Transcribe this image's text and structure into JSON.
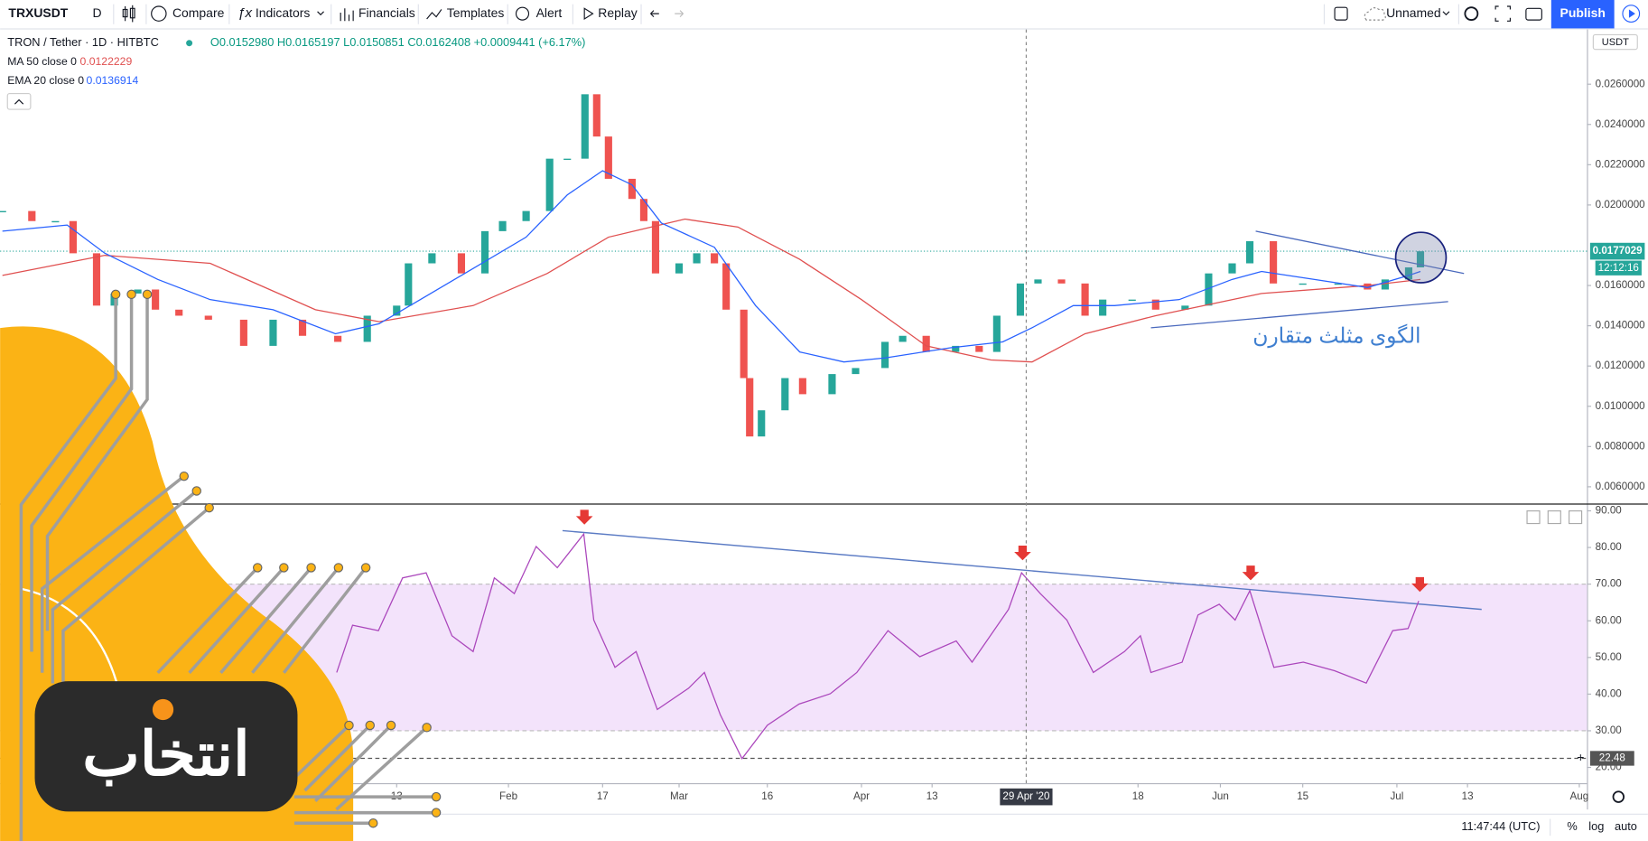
{
  "toolbar": {
    "symbol": "TRXUSDT",
    "interval": "D",
    "compare": "Compare",
    "indicators": "Indicators",
    "financials": "Financials",
    "templates": "Templates",
    "alert": "Alert",
    "replay": "Replay",
    "layout": "Unnamed",
    "publish": "Publish"
  },
  "status": {
    "time": "11:47:44 (UTC)",
    "percent": "%",
    "log": "log",
    "auto": "auto"
  },
  "logo": {
    "text": "انتخاب"
  },
  "chart_data": [
    {
      "type": "candlestick",
      "title": "TRON / Tether · 1D · HITBTC",
      "ohlc": "O0.0152980 H0.0165197 L0.0150851 C0.0162408 +0.0009441 (+6.17%)",
      "unit": "USDT",
      "xlim": [
        -55.4,
        214.3
      ],
      "ylim": [
        0.02872,
        0.00522
      ],
      "yticks": [
        {
          "value": 0.026,
          "label": "0.0260000"
        },
        {
          "value": 0.024,
          "label": "0.0240000"
        },
        {
          "value": 0.022,
          "label": "0.0220000"
        },
        {
          "value": 0.02,
          "label": "0.0200000"
        },
        {
          "value": 0.016,
          "label": "0.0160000"
        },
        {
          "value": 0.014,
          "label": "0.0140000"
        },
        {
          "value": 0.012,
          "label": "0.0120000"
        },
        {
          "value": 0.01,
          "label": "0.0100000"
        },
        {
          "value": 0.008,
          "label": "0.0080000"
        },
        {
          "value": 0.006,
          "label": "0.0060000"
        }
      ],
      "xticks": [
        {
          "value": 12,
          "label": "13"
        },
        {
          "value": 31,
          "label": "Feb"
        },
        {
          "value": 47,
          "label": "17"
        },
        {
          "value": 60,
          "label": "Mar"
        },
        {
          "value": 75,
          "label": "16"
        },
        {
          "value": 91,
          "label": "Apr"
        },
        {
          "value": 103,
          "label": "13"
        },
        {
          "value": 138,
          "label": "18"
        },
        {
          "value": 152,
          "label": "Jun"
        },
        {
          "value": 166,
          "label": "15"
        },
        {
          "value": 182,
          "label": "Jul"
        },
        {
          "value": 194,
          "label": "13"
        },
        {
          "value": 213,
          "label": "Aug"
        }
      ],
      "cursor": {
        "value": 119,
        "label": "29 Apr '20"
      },
      "series": [
        {
          "up_color": "#26a69a",
          "down_color": "#ef5350",
          "x": [
            -55,
            -50,
            -46,
            -43,
            -39,
            -36,
            -32,
            -29,
            -25,
            -20,
            -14,
            -9,
            -4,
            2,
            7,
            12,
            14,
            18,
            23,
            27,
            30,
            34,
            38,
            41,
            44,
            46,
            48,
            52,
            54,
            56,
            60,
            63,
            66,
            68,
            71,
            72,
            74,
            78,
            81,
            86,
            90,
            95,
            98,
            102,
            107,
            111,
            114,
            118,
            121,
            125,
            129,
            132,
            137,
            141,
            146,
            150,
            154,
            157,
            161,
            166,
            172,
            177,
            180,
            184,
            186
          ],
          "values": [
            0.0197,
            0.0192,
            0.0192,
            0.0176,
            0.015,
            0.0156,
            0.0158,
            0.0148,
            0.0145,
            0.0143,
            0.013,
            0.0143,
            0.0135,
            0.0132,
            0.0145,
            0.015,
            0.0171,
            0.0176,
            0.0166,
            0.0187,
            0.0192,
            0.0197,
            0.0223,
            0.0223,
            0.0255,
            0.0234,
            0.0213,
            0.0203,
            0.0192,
            0.0166,
            0.0171,
            0.0176,
            0.0171,
            0.0148,
            0.0114,
            0.0085,
            0.0098,
            0.0114,
            0.0106,
            0.0116,
            0.0119,
            0.0132,
            0.0135,
            0.0127,
            0.013,
            0.0127,
            0.0145,
            0.0161,
            0.0163,
            0.0161,
            0.0145,
            0.0153,
            0.0153,
            0.0148,
            0.015,
            0.0166,
            0.0171,
            0.0182,
            0.0161,
            0.0161,
            0.0161,
            0.0158,
            0.0163,
            0.0169,
            0.0177
          ]
        }
      ],
      "indicators": [
        {
          "name": "MA 50 close 0",
          "value": 0.0122229,
          "color": "#e05050",
          "x": [
            -55,
            -37.6,
            -19.7,
            -1.8,
            9,
            25,
            37.6,
            48,
            61,
            70,
            80.5,
            91,
            102,
            113,
            120,
            129,
            141,
            159,
            177,
            186
          ],
          "values": [
            0.0165,
            0.0175,
            0.0171,
            0.0148,
            0.0142,
            0.015,
            0.0166,
            0.0184,
            0.0193,
            0.0189,
            0.0173,
            0.0153,
            0.013,
            0.0123,
            0.0122,
            0.0136,
            0.0145,
            0.0156,
            0.016,
            0.0163
          ]
        },
        {
          "name": "EMA 20 close 0",
          "value": 0.0136914,
          "color": "#2962ff",
          "x": [
            -55,
            -44,
            -37.6,
            -28.6,
            -19.7,
            -9,
            1.6,
            9,
            16,
            23,
            34,
            41,
            47,
            52,
            57,
            66,
            73,
            80.5,
            88,
            95,
            106,
            115,
            120,
            127,
            134,
            145,
            154,
            159,
            168,
            177,
            184,
            186
          ],
          "values": [
            0.0187,
            0.019,
            0.0176,
            0.0163,
            0.0153,
            0.0148,
            0.0136,
            0.0141,
            0.0153,
            0.0165,
            0.0184,
            0.0205,
            0.0217,
            0.021,
            0.0191,
            0.0179,
            0.015,
            0.0127,
            0.0122,
            0.0124,
            0.0129,
            0.0132,
            0.0139,
            0.015,
            0.015,
            0.0153,
            0.0163,
            0.0167,
            0.0163,
            0.0159,
            0.0165,
            0.0167
          ]
        }
      ],
      "trendlines": [
        {
          "x": [
            158,
            193.4
          ],
          "values": [
            0.0187,
            0.0166
          ]
        },
        {
          "x": [
            140.2,
            190.7
          ],
          "values": [
            0.0139,
            0.0152
          ]
        }
      ],
      "annotation": "الگوی مثلث متقارن",
      "last_price": 0.0177029,
      "countdown": "12:12:16"
    },
    {
      "type": "line",
      "xlim": [
        -55.4,
        214.3
      ],
      "ylim": [
        91.7,
        15.7
      ],
      "yticks": [
        {
          "value": 90,
          "label": "90.00"
        },
        {
          "value": 80,
          "label": "80.00"
        },
        {
          "value": 70,
          "label": "70.00"
        },
        {
          "value": 60,
          "label": "60.00"
        },
        {
          "value": 50,
          "label": "50.00"
        },
        {
          "value": 40,
          "label": "40.00"
        },
        {
          "value": 30,
          "label": "30.00"
        },
        {
          "value": 20,
          "label": "20.00"
        }
      ],
      "band": [
        30,
        70
      ],
      "band_color": "#f3e3fb",
      "marker": 22.48,
      "series": [
        {
          "color": "#ab47bc",
          "x": [
            1.8,
            4.5,
            8.9,
            13,
            17,
            21.4,
            25,
            28.6,
            32,
            35.7,
            39.3,
            43.8,
            45.5,
            49.1,
            52.7,
            56.3,
            61.6,
            64.3,
            67,
            70.7,
            75,
            80.4,
            85.7,
            90.2,
            95.5,
            100.9,
            107.1,
            109.8,
            116,
            118.2,
            121.4,
            125.9,
            130.4,
            135.7,
            138.4,
            140.2,
            145.5,
            148.2,
            151.8,
            154.5,
            157,
            161.1,
            166.1,
            171.4,
            176.8,
            181.3,
            183.9,
            185.7
          ],
          "values": [
            45.9,
            58.8,
            57.3,
            71.7,
            73.1,
            55.9,
            51.6,
            71.7,
            67.4,
            80.3,
            74.5,
            83.7,
            60.2,
            47.3,
            51.6,
            35.8,
            41.6,
            45.9,
            34.4,
            22.4,
            31.5,
            37.3,
            40.1,
            45.9,
            57.3,
            50.2,
            54.5,
            48.7,
            63.1,
            73.1,
            67.4,
            60.2,
            45.9,
            51.6,
            55.9,
            45.9,
            48.7,
            61.6,
            64.5,
            60.2,
            68.2,
            47.3,
            48.7,
            46.4,
            43,
            57.3,
            57.9,
            65.4
          ]
        }
      ],
      "trendline": {
        "x": [
          40.2,
          196.4
        ],
        "values": [
          84.6,
          63.1
        ]
      }
    }
  ]
}
